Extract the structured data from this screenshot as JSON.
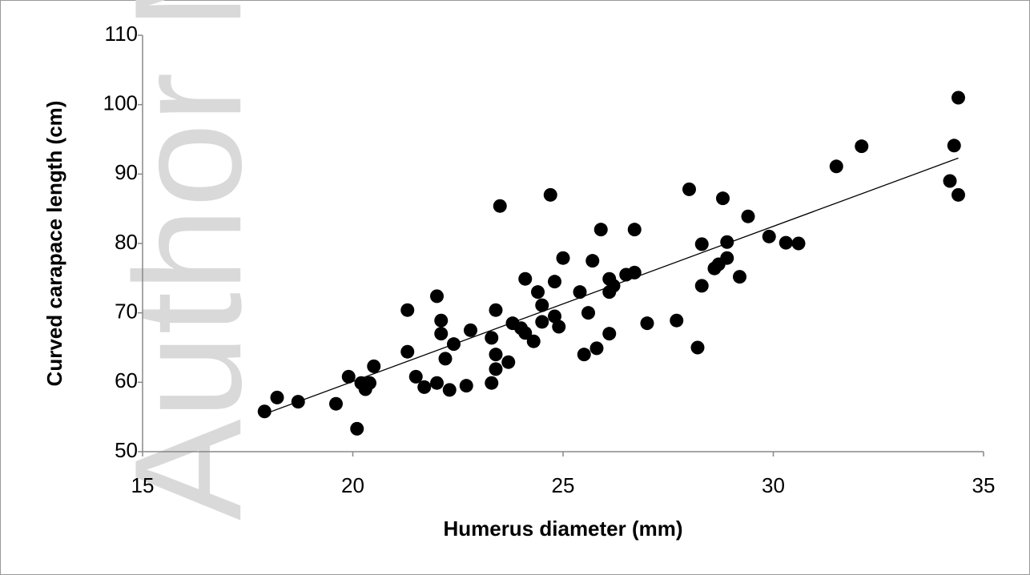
{
  "watermark": "Author Manuscript",
  "chart_data": {
    "type": "scatter",
    "x_label": "Humerus diameter (mm)",
    "y_label": "Curved carapace length (cm)",
    "xlim": [
      15,
      35
    ],
    "xticks": [
      15,
      20,
      25,
      30,
      35
    ],
    "ylim": [
      50,
      110
    ],
    "yticks": [
      50,
      60,
      70,
      80,
      90,
      100,
      110
    ],
    "grid": false,
    "series": [
      {
        "color": "#000000",
        "x": [
          17.9,
          18.2,
          18.7,
          19.6,
          19.9,
          20.1,
          20.2,
          20.3,
          20.4,
          20.5,
          21.3,
          21.3,
          21.5,
          21.7,
          22.0,
          22.0,
          22.1,
          22.1,
          22.2,
          22.3,
          22.4,
          22.7,
          22.8,
          23.3,
          23.3,
          23.4,
          23.4,
          23.4,
          23.5,
          23.7,
          23.8,
          24.0,
          24.1,
          24.1,
          24.3,
          24.4,
          24.5,
          24.5,
          24.7,
          24.8,
          24.8,
          24.9,
          25.0,
          25.4,
          25.5,
          25.6,
          25.7,
          25.8,
          25.9,
          26.1,
          26.1,
          26.1,
          26.2,
          26.5,
          26.7,
          26.7,
          27.0,
          27.7,
          28.0,
          28.2,
          28.3,
          28.3,
          28.6,
          28.7,
          28.8,
          28.9,
          28.9,
          29.2,
          29.4,
          29.9,
          30.3,
          30.6,
          31.5,
          32.1,
          34.2,
          34.3,
          34.4,
          34.4
        ],
        "y": [
          55.8,
          57.8,
          57.2,
          56.9,
          60.8,
          53.3,
          59.9,
          59.0,
          59.9,
          62.3,
          70.4,
          64.4,
          60.8,
          59.3,
          59.9,
          72.4,
          68.9,
          67.0,
          63.4,
          58.9,
          65.5,
          59.5,
          67.5,
          59.9,
          66.4,
          70.4,
          64.0,
          61.9,
          85.4,
          62.9,
          68.5,
          67.8,
          67.1,
          74.9,
          65.9,
          73.0,
          71.1,
          68.7,
          87.0,
          69.5,
          74.5,
          68.0,
          77.9,
          73.0,
          64.0,
          70.0,
          77.5,
          64.9,
          82.0,
          73.0,
          74.9,
          67.0,
          73.9,
          75.5,
          82.0,
          75.8,
          68.5,
          68.9,
          87.8,
          65.0,
          73.9,
          79.9,
          76.4,
          77.0,
          86.5,
          77.9,
          80.2,
          75.2,
          83.9,
          81.0,
          80.1,
          80.0,
          91.1,
          94.0,
          89.0,
          94.1,
          101.0,
          87.0
        ]
      }
    ],
    "trendline": {
      "color": "#000000",
      "x": [
        17.8,
        34.4
      ],
      "y": [
        55.2,
        92.3
      ]
    }
  }
}
